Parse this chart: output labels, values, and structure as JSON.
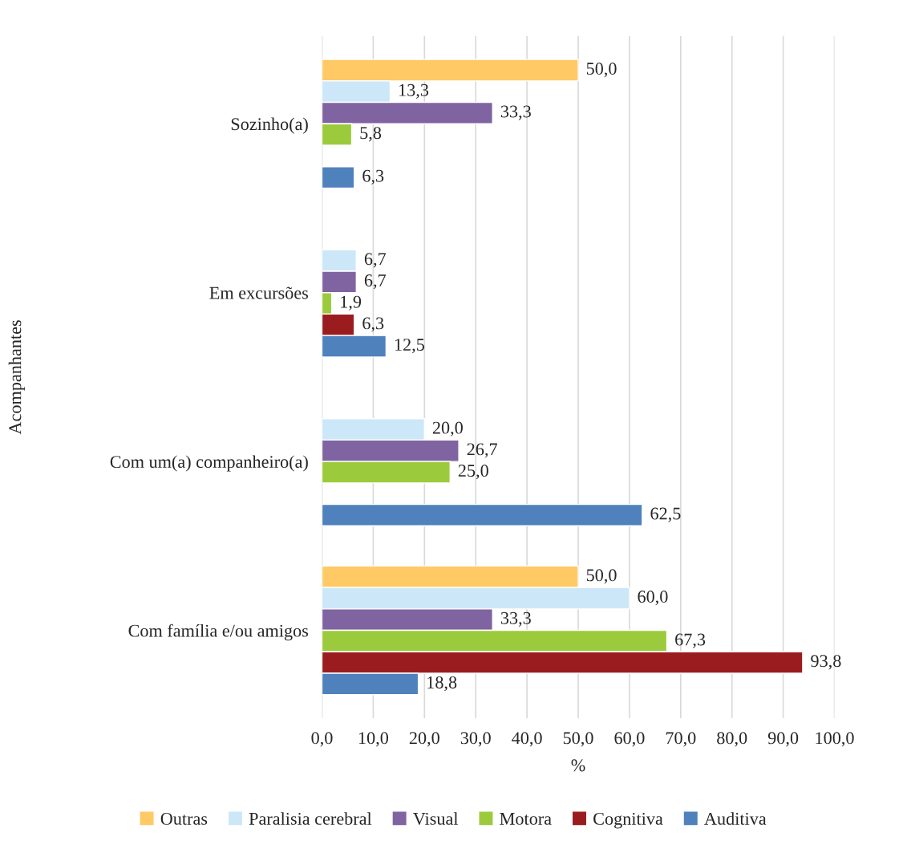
{
  "chart_data": {
    "type": "bar",
    "orientation": "horizontal",
    "xlabel": "%",
    "ylabel": "Acompanhantes",
    "categories": [
      "Sozinho(a)",
      "Em excursões",
      "Com um(a) companheiro(a)",
      "Com família e/ou amigos"
    ],
    "series": [
      {
        "name": "Outras",
        "color": "#ffc966",
        "values": [
          50.0,
          null,
          null,
          50.0
        ],
        "value_labels": [
          "50,0",
          null,
          null,
          "50,0"
        ]
      },
      {
        "name": "Paralisia cerebral",
        "color": "#cce8f8",
        "values": [
          13.3,
          6.7,
          20.0,
          60.0
        ],
        "value_labels": [
          "13,3",
          "6,7",
          "20,0",
          "60,0"
        ]
      },
      {
        "name": "Visual",
        "color": "#8064a2",
        "values": [
          33.3,
          6.7,
          26.7,
          33.3
        ],
        "value_labels": [
          "33,3",
          "6,7",
          "26,7",
          "33,3"
        ]
      },
      {
        "name": "Motora",
        "color": "#9bcb3c",
        "values": [
          5.8,
          1.9,
          25.0,
          67.3
        ],
        "value_labels": [
          "5,8",
          "1,9",
          "25,0",
          "67,3"
        ]
      },
      {
        "name": "Cognitiva",
        "color": "#9b1c1f",
        "values": [
          null,
          6.3,
          null,
          93.8
        ],
        "value_labels": [
          null,
          "6,3",
          null,
          "93,8"
        ]
      },
      {
        "name": "Auditiva",
        "color": "#4f81bd",
        "values": [
          6.3,
          12.5,
          62.5,
          18.8
        ],
        "value_labels": [
          "6,3",
          "12,5",
          "62,5",
          "18,8"
        ]
      }
    ],
    "xlim": [
      0,
      100
    ],
    "xticks": [
      {
        "value": 0,
        "label": "0,0"
      },
      {
        "value": 10,
        "label": "10,0"
      },
      {
        "value": 20,
        "label": "20,0"
      },
      {
        "value": 30,
        "label": "30,0"
      },
      {
        "value": 40,
        "label": "40,0"
      },
      {
        "value": 50,
        "label": "50,0"
      },
      {
        "value": 60,
        "label": "60,0"
      },
      {
        "value": 70,
        "label": "70,0"
      },
      {
        "value": 80,
        "label": "80,0"
      },
      {
        "value": 90,
        "label": "90,0"
      },
      {
        "value": 100,
        "label": "100,0"
      }
    ],
    "grid": "x",
    "legend": "bottom"
  }
}
